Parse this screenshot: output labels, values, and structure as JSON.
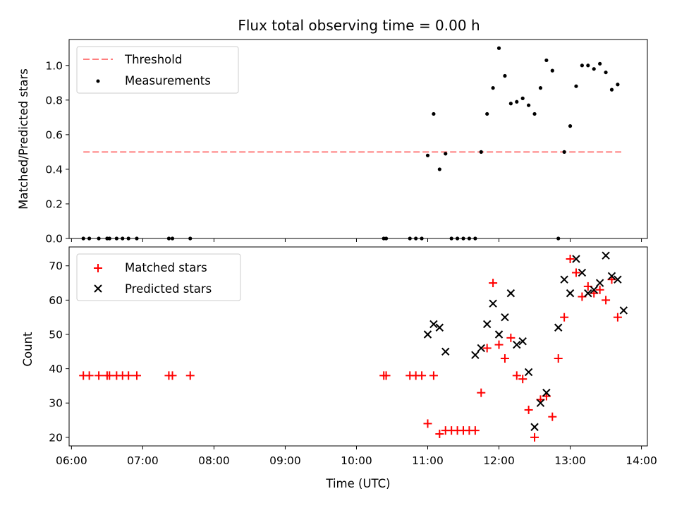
{
  "chart_data": [
    {
      "type": "scatter",
      "title": "Flux total observing time = 0.00 h",
      "ylabel": "Matched/Predicted stars",
      "xlabel": "",
      "xlim": [
        "05:58",
        "14:05"
      ],
      "ylim": [
        0,
        1.15
      ],
      "yticks": [
        0.0,
        0.2,
        0.4,
        0.6,
        0.8,
        1.0
      ],
      "ytick_labels": [
        "0.0",
        "0.2",
        "0.4",
        "0.6",
        "0.8",
        "1.0"
      ],
      "legend": {
        "position": "top-left",
        "entries": [
          "Threshold",
          "Measurements"
        ]
      },
      "colors": {
        "threshold": "#ff7f7f",
        "measurements": "#000000"
      },
      "series": [
        {
          "name": "Threshold",
          "kind": "dashed-line",
          "x": [
            "06:10",
            "13:43"
          ],
          "y": [
            0.5,
            0.5
          ]
        },
        {
          "name": "Measurements",
          "kind": "points",
          "x": [
            "06:10",
            "06:15",
            "06:23",
            "06:30",
            "06:32",
            "06:38",
            "06:43",
            "06:48",
            "06:55",
            "07:22",
            "07:25",
            "07:40",
            "10:23",
            "10:25",
            "10:45",
            "10:50",
            "10:55",
            "11:00",
            "11:05",
            "11:10",
            "11:15",
            "11:20",
            "11:25",
            "11:30",
            "11:35",
            "11:40",
            "11:45",
            "11:50",
            "11:55",
            "12:00",
            "12:05",
            "12:10",
            "12:15",
            "12:20",
            "12:25",
            "12:30",
            "12:35",
            "12:40",
            "12:45",
            "12:50",
            "12:55",
            "13:00",
            "13:05",
            "13:10",
            "13:15",
            "13:20",
            "13:25",
            "13:30",
            "13:35",
            "13:40"
          ],
          "y": [
            0,
            0,
            0,
            0,
            0,
            0,
            0,
            0,
            0,
            0,
            0,
            0,
            0,
            0,
            0,
            0,
            0,
            0.48,
            0.72,
            0.4,
            0.49,
            0,
            0,
            0,
            0,
            0,
            0.5,
            0.72,
            0.87,
            1.1,
            0.94,
            0.78,
            0.79,
            0.81,
            0.77,
            0.72,
            0.87,
            1.03,
            0.97,
            0,
            0.5,
            0.65,
            0.88,
            1.0,
            1.0,
            0.98,
            1.01,
            0.96,
            0.86,
            0.89
          ]
        }
      ]
    },
    {
      "type": "scatter",
      "title": "",
      "ylabel": "Count",
      "xlabel": "Time (UTC)",
      "xlim": [
        "05:58",
        "14:05"
      ],
      "ylim": [
        17.5,
        75.5
      ],
      "yticks": [
        20,
        30,
        40,
        50,
        60,
        70
      ],
      "ytick_labels": [
        "20",
        "30",
        "40",
        "50",
        "60",
        "70"
      ],
      "xticks": [
        "06:00",
        "07:00",
        "08:00",
        "09:00",
        "10:00",
        "11:00",
        "12:00",
        "13:00",
        "14:00"
      ],
      "legend": {
        "position": "top-left",
        "entries": [
          "Matched stars",
          "Predicted stars"
        ]
      },
      "colors": {
        "matched": "#ff0000",
        "predicted": "#000000"
      },
      "series": [
        {
          "name": "Matched stars",
          "marker": "plus",
          "x": [
            "06:10",
            "06:15",
            "06:23",
            "06:30",
            "06:32",
            "06:38",
            "06:43",
            "06:48",
            "06:55",
            "07:22",
            "07:25",
            "07:40",
            "10:23",
            "10:25",
            "10:45",
            "10:50",
            "10:55",
            "11:00",
            "11:05",
            "11:10",
            "11:15",
            "11:20",
            "11:25",
            "11:30",
            "11:35",
            "11:40",
            "11:45",
            "11:50",
            "11:55",
            "12:00",
            "12:05",
            "12:10",
            "12:15",
            "12:20",
            "12:25",
            "12:30",
            "12:35",
            "12:40",
            "12:45",
            "12:50",
            "12:55",
            "13:00",
            "13:05",
            "13:10",
            "13:15",
            "13:20",
            "13:25",
            "13:30",
            "13:35",
            "13:40"
          ],
          "y": [
            38,
            38,
            38,
            38,
            38,
            38,
            38,
            38,
            38,
            38,
            38,
            38,
            38,
            38,
            38,
            38,
            38,
            24,
            38,
            21,
            22,
            22,
            22,
            22,
            22,
            22,
            33,
            46,
            65,
            47,
            43,
            49,
            38,
            37,
            28,
            20,
            31,
            32,
            26,
            43,
            55,
            72,
            68,
            61,
            64,
            62,
            63,
            60,
            66,
            55
          ]
        },
        {
          "name": "Predicted stars",
          "marker": "x",
          "x": [
            "11:00",
            "11:05",
            "11:10",
            "11:15",
            "11:40",
            "11:45",
            "11:50",
            "11:55",
            "12:00",
            "12:05",
            "12:10",
            "12:15",
            "12:20",
            "12:25",
            "12:30",
            "12:35",
            "12:40",
            "12:50",
            "12:55",
            "13:00",
            "13:05",
            "13:10",
            "13:15",
            "13:20",
            "13:25",
            "13:30",
            "13:35",
            "13:40",
            "13:45"
          ],
          "y": [
            50,
            53,
            52,
            45,
            44,
            46,
            53,
            59,
            50,
            55,
            62,
            47,
            48,
            39,
            23,
            30,
            33,
            52,
            66,
            62,
            72,
            68,
            62,
            63,
            65,
            73,
            67,
            66,
            57
          ]
        }
      ]
    }
  ]
}
